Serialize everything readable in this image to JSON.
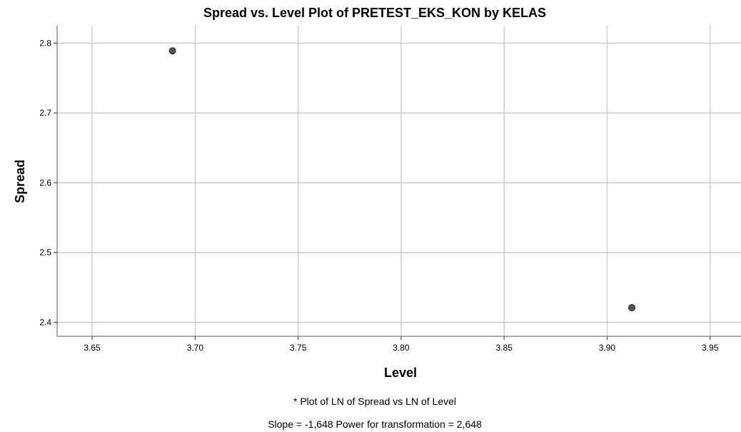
{
  "chart_data": {
    "type": "scatter",
    "title": "Spread vs. Level Plot of PRETEST_EKS_KON by KELAS",
    "xlabel": "Level",
    "ylabel": "Spread",
    "xlim": [
      3.633,
      3.965
    ],
    "ylim": [
      2.38,
      2.825
    ],
    "xticks": [
      3.65,
      3.7,
      3.75,
      3.8,
      3.85,
      3.9,
      3.95
    ],
    "xtick_labels": [
      "3.65",
      "3.70",
      "3.75",
      "3.80",
      "3.85",
      "3.90",
      "3.95"
    ],
    "yticks": [
      2.4,
      2.5,
      2.6,
      2.7,
      2.8
    ],
    "ytick_labels": [
      "2.4",
      "2.5",
      "2.6",
      "2.7",
      "2.8"
    ],
    "grid": true,
    "points": [
      {
        "x": 3.689,
        "y": 2.789
      },
      {
        "x": 3.912,
        "y": 2.421
      }
    ],
    "point_color": "#555555",
    "grid_color": "#c8c8c8"
  },
  "footnotes": {
    "line1": "* Plot of LN of Spread vs LN of Level",
    "line2": "Slope = -1,648 Power for transformation = 2,648"
  }
}
